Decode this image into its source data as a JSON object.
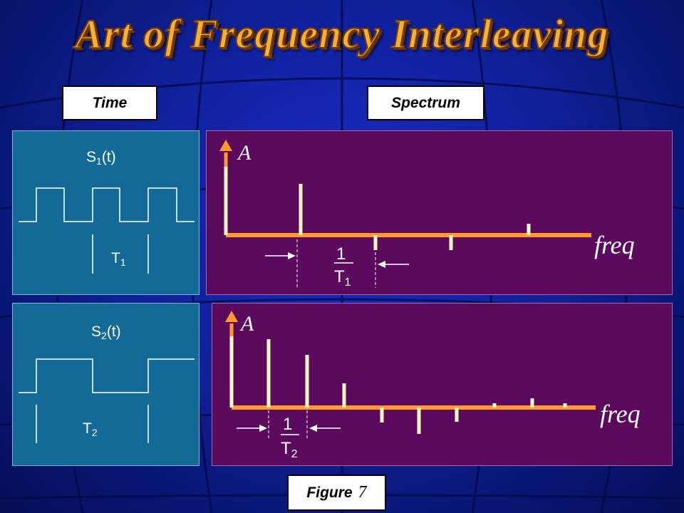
{
  "title": "Art of Frequency Interleaving",
  "headers": {
    "time": "Time",
    "spectrum": "Spectrum"
  },
  "signal1": {
    "name": "S",
    "sub": "1",
    "arg": "(t)",
    "period": "T",
    "period_sub": "1"
  },
  "signal2": {
    "name": "S",
    "sub": "2",
    "arg": "(t)",
    "period": "T",
    "period_sub": "2"
  },
  "spectrum1": {
    "y_label": "A",
    "x_label": "freq",
    "spacing_num": "1",
    "spacing_den": "T",
    "spacing_sub": "1"
  },
  "spectrum2": {
    "y_label": "A",
    "x_label": "freq",
    "spacing_num": "1",
    "spacing_den": "T",
    "spacing_sub": "2"
  },
  "caption": {
    "word": "Figure",
    "number": "7"
  },
  "colors": {
    "title": "#f2b23a",
    "time_panel": "#136a97",
    "spectrum_panel": "#5c0a5e",
    "axis": "#ff9a2a",
    "spectral_line": "#fff8c0"
  }
}
